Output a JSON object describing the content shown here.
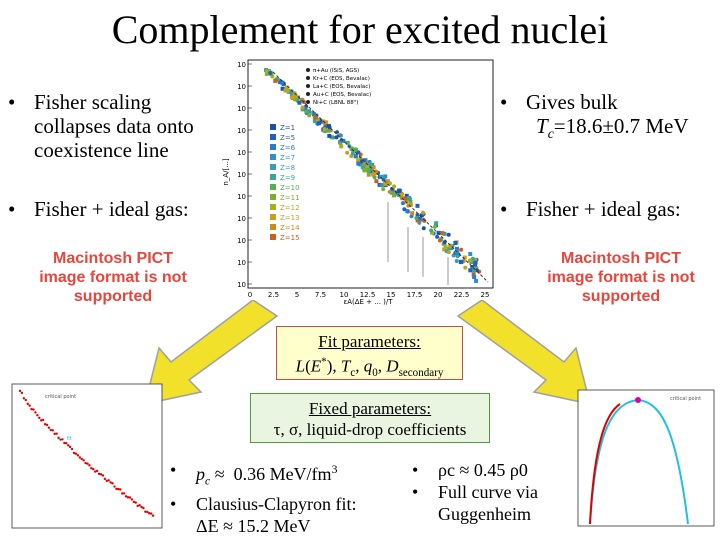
{
  "title": "Complement for excited nuclei",
  "left_bullets": [
    {
      "text": "Fisher scaling collapses data onto coexistence line"
    },
    {
      "text": "Fisher + ideal gas:"
    }
  ],
  "right_bullets": [
    {
      "text": "Gives bulk"
    },
    {
      "tc_prefix": "T",
      "tc_sub": "c",
      "tc_value": "=18.6±0.7 MeV"
    },
    {
      "text": "Fisher + ideal gas:"
    }
  ],
  "pict_message": "Macintosh PICT image format is not supported",
  "plot_main": {
    "legend": [
      "π+Au (ISiS, AGS)",
      "Kr+C (EOS, Bevalac)",
      "La+C (EOS, Bevalac)",
      "Au+C (EOS, Bevalac)",
      "Ni+C (LBNL 88\")"
    ],
    "z_labels": [
      "Z=1",
      "Z=5",
      "Z=6",
      "Z=7",
      "Z=8",
      "Z=9",
      "Z=10",
      "Z=11",
      "Z=12",
      "Z=13",
      "Z=14",
      "Z=15"
    ],
    "z_colors": [
      "#1e4fb0",
      "#2060c0",
      "#2b7ad0",
      "#3190c8",
      "#36a0b0",
      "#3aa890",
      "#55b050",
      "#7ab030",
      "#a8b020",
      "#c8a020",
      "#d08820",
      "#c86020"
    ],
    "x_ticks": [
      "0",
      "2.5",
      "5",
      "7.5",
      "10",
      "12.5",
      "15",
      "17.5",
      "20",
      "22.5",
      "25"
    ],
    "y_ticks": [
      "10",
      "10",
      "10",
      "10",
      "10",
      "10",
      "10",
      "10",
      "10",
      "10",
      "10"
    ],
    "xlabel": "εA(ΔE + ... )/T",
    "ylabel": "n_A/[...]"
  },
  "fit_box": {
    "heading": "Fit parameters:",
    "params": "L(E*), Tc, q0, Dsecondary"
  },
  "fixed_box": {
    "heading": "Fixed parameters:",
    "params": "τ, σ, liquid-drop coefficients"
  },
  "bottom_left_bullets": [
    {
      "text": "pc ≈ 0.36 MeV/fm³"
    },
    {
      "text": "Clausius-Clapyron fit:"
    },
    {
      "text": "ΔE ≈ 15.2 MeV"
    }
  ],
  "bottom_right_bullets": [
    {
      "text": "ρc ≈ 0.45 ρ0"
    },
    {
      "text": "Full curve via"
    },
    {
      "text": "Guggenheim"
    }
  ],
  "colors": {
    "arrow_fill": "#f2e12a",
    "arrow_edge": "#a0a0a0",
    "pict_text": "#e8453c",
    "curve_blue": "#20c0e0",
    "curve_red": "#e00000"
  }
}
